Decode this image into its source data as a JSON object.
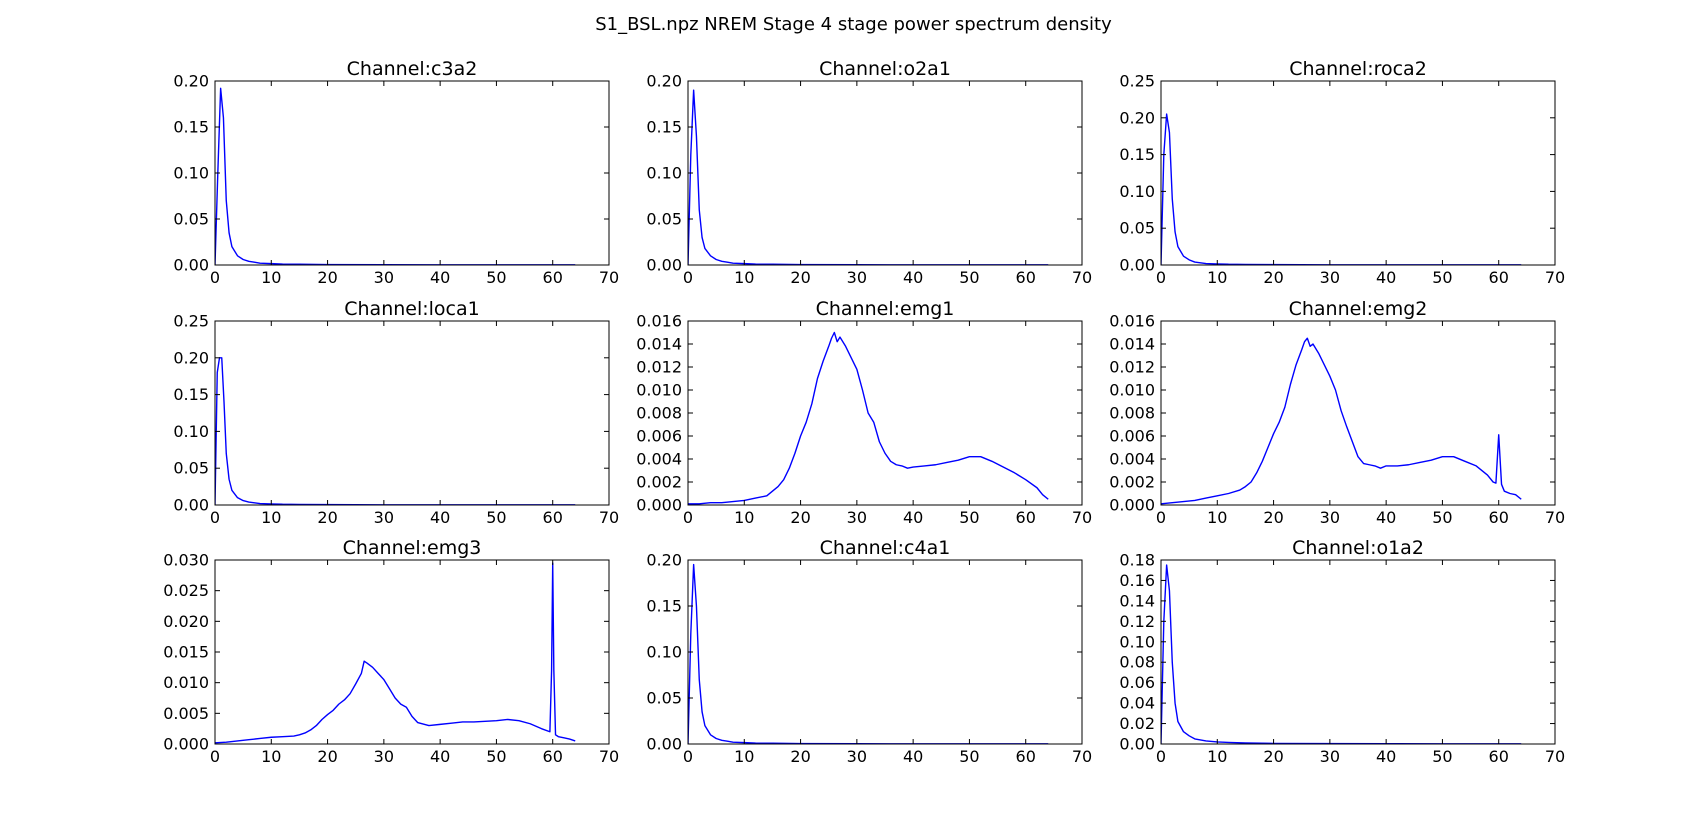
{
  "figure": {
    "title": "S1_BSL.npz NREM Stage 4 stage power spectrum density",
    "line_color": "#0000ff"
  },
  "chart_data": [
    {
      "type": "line",
      "title": "Channel:c3a2",
      "xlabel": "",
      "ylabel": "",
      "xlim": [
        0,
        70
      ],
      "ylim": [
        0,
        0.2
      ],
      "xticks": [
        "0",
        "10",
        "20",
        "30",
        "40",
        "50",
        "60",
        "70"
      ],
      "yticks": [
        "0.00",
        "0.05",
        "0.10",
        "0.15",
        "0.20"
      ],
      "grid": false,
      "x": [
        0,
        0.5,
        1,
        1.5,
        2,
        2.5,
        3,
        4,
        5,
        6,
        7,
        8,
        10,
        12,
        15,
        20,
        30,
        40,
        50,
        60,
        64
      ],
      "y": [
        0.0,
        0.1,
        0.192,
        0.16,
        0.07,
        0.035,
        0.02,
        0.01,
        0.006,
        0.004,
        0.003,
        0.002,
        0.0015,
        0.001,
        0.0008,
        0.0005,
        0.0003,
        0.0002,
        0.0002,
        0.0002,
        0.0002
      ]
    },
    {
      "type": "line",
      "title": "Channel:o2a1",
      "xlabel": "",
      "ylabel": "",
      "xlim": [
        0,
        70
      ],
      "ylim": [
        0,
        0.2
      ],
      "xticks": [
        "0",
        "10",
        "20",
        "30",
        "40",
        "50",
        "60",
        "70"
      ],
      "yticks": [
        "0.00",
        "0.05",
        "0.10",
        "0.15",
        "0.20"
      ],
      "grid": false,
      "x": [
        0,
        0.5,
        1,
        1.5,
        2,
        2.5,
        3,
        4,
        5,
        6,
        7,
        8,
        10,
        12,
        15,
        20,
        30,
        40,
        50,
        60,
        64
      ],
      "y": [
        0.0,
        0.12,
        0.19,
        0.14,
        0.06,
        0.03,
        0.018,
        0.01,
        0.006,
        0.004,
        0.003,
        0.002,
        0.0015,
        0.001,
        0.0008,
        0.0005,
        0.0003,
        0.0002,
        0.0002,
        0.0002,
        0.0002
      ]
    },
    {
      "type": "line",
      "title": "Channel:roca2",
      "xlabel": "",
      "ylabel": "",
      "xlim": [
        0,
        70
      ],
      "ylim": [
        0,
        0.25
      ],
      "xticks": [
        "0",
        "10",
        "20",
        "30",
        "40",
        "50",
        "60",
        "70"
      ],
      "yticks": [
        "0.00",
        "0.05",
        "0.10",
        "0.15",
        "0.20",
        "0.25"
      ],
      "grid": false,
      "x": [
        0,
        0.5,
        1,
        1.5,
        2,
        2.5,
        3,
        4,
        5,
        6,
        7,
        8,
        10,
        12,
        15,
        20,
        30,
        40,
        50,
        60,
        64
      ],
      "y": [
        0.0,
        0.15,
        0.205,
        0.18,
        0.09,
        0.045,
        0.025,
        0.012,
        0.007,
        0.004,
        0.003,
        0.002,
        0.0015,
        0.001,
        0.0008,
        0.0005,
        0.0003,
        0.0002,
        0.0002,
        0.0002,
        0.0002
      ]
    },
    {
      "type": "line",
      "title": "Channel:loca1",
      "xlabel": "",
      "ylabel": "",
      "xlim": [
        0,
        70
      ],
      "ylim": [
        0,
        0.25
      ],
      "xticks": [
        "0",
        "10",
        "20",
        "30",
        "40",
        "50",
        "60",
        "70"
      ],
      "yticks": [
        "0.00",
        "0.05",
        "0.10",
        "0.15",
        "0.20",
        "0.25"
      ],
      "grid": false,
      "x": [
        0,
        0.4,
        0.8,
        1.2,
        1.6,
        2,
        2.5,
        3,
        4,
        5,
        6,
        7,
        8,
        10,
        12,
        15,
        20,
        30,
        40,
        50,
        60,
        64
      ],
      "y": [
        0.0,
        0.18,
        0.2,
        0.2,
        0.14,
        0.07,
        0.035,
        0.02,
        0.01,
        0.006,
        0.004,
        0.003,
        0.002,
        0.0015,
        0.001,
        0.0008,
        0.0005,
        0.0003,
        0.0002,
        0.0002,
        0.0002,
        0.0002
      ]
    },
    {
      "type": "line",
      "title": "Channel:emg1",
      "xlabel": "",
      "ylabel": "",
      "xlim": [
        0,
        70
      ],
      "ylim": [
        0,
        0.016
      ],
      "xticks": [
        "0",
        "10",
        "20",
        "30",
        "40",
        "50",
        "60",
        "70"
      ],
      "yticks": [
        "0.000",
        "0.002",
        "0.004",
        "0.006",
        "0.008",
        "0.010",
        "0.012",
        "0.014",
        "0.016"
      ],
      "grid": false,
      "x": [
        0,
        2,
        4,
        6,
        8,
        10,
        12,
        14,
        15,
        16,
        17,
        18,
        19,
        20,
        21,
        22,
        23,
        24,
        25,
        25.5,
        26,
        26.5,
        27,
        28,
        29,
        30,
        31,
        32,
        33,
        34,
        35,
        36,
        37,
        38,
        39,
        40,
        42,
        44,
        46,
        48,
        50,
        52,
        54,
        56,
        58,
        60,
        62,
        63,
        64
      ],
      "y": [
        0.0001,
        0.0001,
        0.0002,
        0.0002,
        0.0003,
        0.0004,
        0.0006,
        0.0008,
        0.0012,
        0.0016,
        0.0022,
        0.0032,
        0.0045,
        0.006,
        0.0072,
        0.0088,
        0.011,
        0.0125,
        0.0138,
        0.0145,
        0.015,
        0.0142,
        0.0146,
        0.0138,
        0.0128,
        0.0118,
        0.01,
        0.008,
        0.0072,
        0.0055,
        0.0045,
        0.0038,
        0.0035,
        0.0034,
        0.0032,
        0.0033,
        0.0034,
        0.0035,
        0.0037,
        0.0039,
        0.0042,
        0.0042,
        0.0038,
        0.0033,
        0.0028,
        0.0022,
        0.0015,
        0.0009,
        0.0005
      ]
    },
    {
      "type": "line",
      "title": "Channel:emg2",
      "xlabel": "",
      "ylabel": "",
      "xlim": [
        0,
        70
      ],
      "ylim": [
        0,
        0.016
      ],
      "xticks": [
        "0",
        "10",
        "20",
        "30",
        "40",
        "50",
        "60",
        "70"
      ],
      "yticks": [
        "0.000",
        "0.002",
        "0.004",
        "0.006",
        "0.008",
        "0.010",
        "0.012",
        "0.014",
        "0.016"
      ],
      "grid": false,
      "x": [
        0,
        2,
        4,
        6,
        8,
        10,
        12,
        14,
        15,
        16,
        17,
        18,
        19,
        20,
        21,
        22,
        23,
        24,
        25,
        25.5,
        26,
        26.5,
        27,
        28,
        29,
        30,
        31,
        32,
        33,
        34,
        35,
        36,
        37,
        38,
        39,
        40,
        42,
        44,
        46,
        48,
        50,
        52,
        54,
        56,
        58,
        59,
        59.5,
        60,
        60.5,
        61,
        62,
        63,
        64
      ],
      "y": [
        0.0001,
        0.0002,
        0.0003,
        0.0004,
        0.0006,
        0.0008,
        0.001,
        0.0013,
        0.0016,
        0.002,
        0.0028,
        0.0038,
        0.005,
        0.0062,
        0.0072,
        0.0085,
        0.0105,
        0.0122,
        0.0135,
        0.0142,
        0.0145,
        0.0138,
        0.014,
        0.0132,
        0.0122,
        0.0112,
        0.01,
        0.0082,
        0.0068,
        0.0055,
        0.0042,
        0.0036,
        0.0035,
        0.0034,
        0.0032,
        0.0034,
        0.0034,
        0.0035,
        0.0037,
        0.0039,
        0.0042,
        0.0042,
        0.0038,
        0.0034,
        0.0026,
        0.002,
        0.0019,
        0.0061,
        0.0018,
        0.0012,
        0.001,
        0.0009,
        0.0005
      ]
    },
    {
      "type": "line",
      "title": "Channel:emg3",
      "xlabel": "",
      "ylabel": "",
      "xlim": [
        0,
        70
      ],
      "ylim": [
        0,
        0.03
      ],
      "xticks": [
        "0",
        "10",
        "20",
        "30",
        "40",
        "50",
        "60",
        "70"
      ],
      "yticks": [
        "0.000",
        "0.005",
        "0.010",
        "0.015",
        "0.020",
        "0.025",
        "0.030"
      ],
      "grid": false,
      "x": [
        0,
        2,
        4,
        6,
        8,
        10,
        12,
        14,
        15,
        16,
        17,
        18,
        19,
        20,
        21,
        22,
        23,
        24,
        25,
        26,
        26.5,
        27,
        28,
        29,
        30,
        31,
        32,
        33,
        34,
        35,
        36,
        38,
        40,
        42,
        44,
        46,
        48,
        50,
        52,
        54,
        56,
        58,
        59.5,
        59.8,
        60,
        60.2,
        60.5,
        61,
        62,
        63,
        64
      ],
      "y": [
        0.0002,
        0.0003,
        0.0005,
        0.0007,
        0.0009,
        0.0011,
        0.0012,
        0.0013,
        0.0015,
        0.0018,
        0.0023,
        0.003,
        0.004,
        0.0048,
        0.0055,
        0.0065,
        0.0072,
        0.0082,
        0.0098,
        0.0115,
        0.0135,
        0.0132,
        0.0125,
        0.0115,
        0.0105,
        0.009,
        0.0075,
        0.0065,
        0.006,
        0.0045,
        0.0035,
        0.003,
        0.0032,
        0.0034,
        0.0036,
        0.0036,
        0.0037,
        0.0038,
        0.004,
        0.0038,
        0.0033,
        0.0025,
        0.002,
        0.012,
        0.0295,
        0.012,
        0.0015,
        0.0012,
        0.001,
        0.0008,
        0.0005
      ]
    },
    {
      "type": "line",
      "title": "Channel:c4a1",
      "xlabel": "",
      "ylabel": "",
      "xlim": [
        0,
        70
      ],
      "ylim": [
        0,
        0.2
      ],
      "xticks": [
        "0",
        "10",
        "20",
        "30",
        "40",
        "50",
        "60",
        "70"
      ],
      "yticks": [
        "0.00",
        "0.05",
        "0.10",
        "0.15",
        "0.20"
      ],
      "grid": false,
      "x": [
        0,
        0.5,
        1,
        1.5,
        2,
        2.5,
        3,
        4,
        5,
        6,
        7,
        8,
        10,
        12,
        15,
        20,
        30,
        40,
        50,
        60,
        64
      ],
      "y": [
        0.0,
        0.12,
        0.195,
        0.15,
        0.07,
        0.035,
        0.02,
        0.01,
        0.006,
        0.004,
        0.003,
        0.002,
        0.0015,
        0.001,
        0.0008,
        0.0005,
        0.0003,
        0.0002,
        0.0002,
        0.0002,
        0.0002
      ]
    },
    {
      "type": "line",
      "title": "Channel:o1a2",
      "xlabel": "",
      "ylabel": "",
      "xlim": [
        0,
        70
      ],
      "ylim": [
        0,
        0.18
      ],
      "xticks": [
        "0",
        "10",
        "20",
        "30",
        "40",
        "50",
        "60",
        "70"
      ],
      "yticks": [
        "0.00",
        "0.02",
        "0.04",
        "0.06",
        "0.08",
        "0.10",
        "0.12",
        "0.14",
        "0.16",
        "0.18"
      ],
      "grid": false,
      "x": [
        0,
        0.5,
        1,
        1.5,
        2,
        2.5,
        3,
        4,
        5,
        6,
        7,
        8,
        10,
        12,
        15,
        20,
        30,
        40,
        50,
        60,
        64
      ],
      "y": [
        0.0,
        0.12,
        0.175,
        0.15,
        0.08,
        0.04,
        0.022,
        0.012,
        0.008,
        0.005,
        0.004,
        0.003,
        0.002,
        0.0015,
        0.001,
        0.0006,
        0.0004,
        0.0003,
        0.0002,
        0.0002,
        0.0002
      ]
    }
  ]
}
